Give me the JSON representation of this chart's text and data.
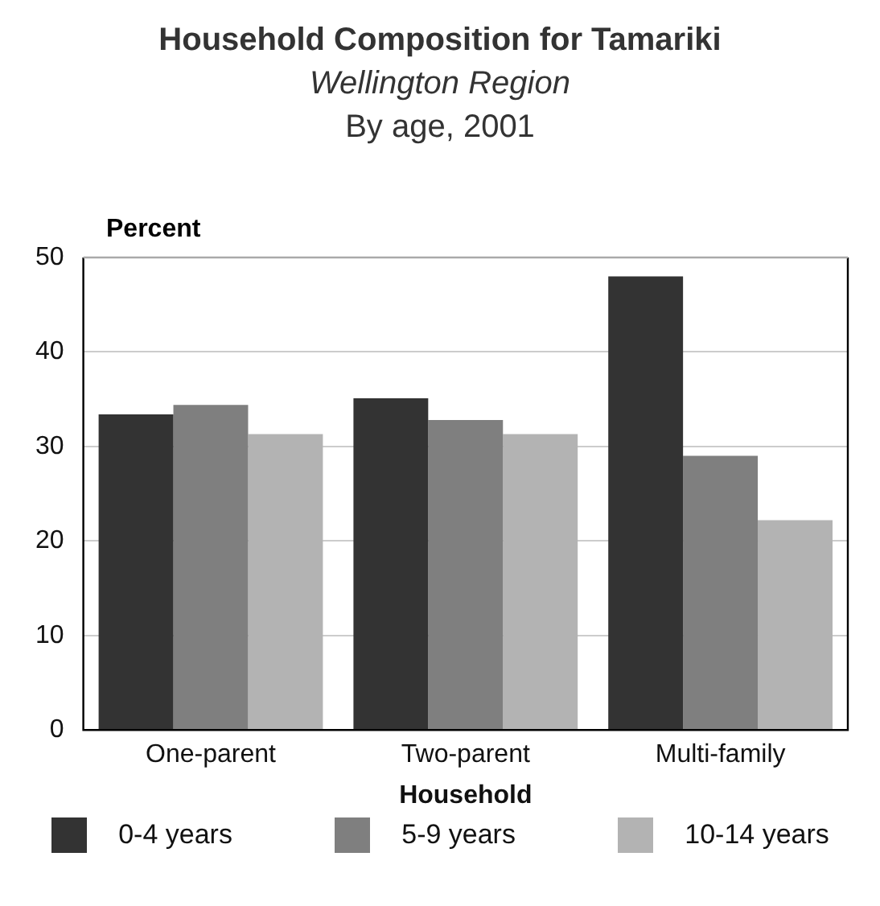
{
  "chart_data": {
    "type": "bar",
    "title": "Household Composition for Tamariki",
    "subtitle": "Wellington Region",
    "annotations": [
      "By age, 2001"
    ],
    "xlabel": "Household",
    "ylabel": "Percent",
    "categories": [
      "One-parent",
      "Two-parent",
      "Multi-family"
    ],
    "series": [
      {
        "name": "0-4 years",
        "color": "#333333",
        "values": [
          33.4,
          35.1,
          48.0
        ]
      },
      {
        "name": "5-9 years",
        "color": "#7f7f7f",
        "values": [
          34.4,
          32.8,
          29.0
        ]
      },
      {
        "name": "10-14 years",
        "color": "#b3b3b3",
        "values": [
          31.3,
          31.3,
          22.2
        ]
      }
    ],
    "ylim": [
      0,
      50
    ],
    "yticks": [
      0,
      10,
      20,
      30,
      40,
      50
    ],
    "grid": "y",
    "legend": "bottom"
  }
}
